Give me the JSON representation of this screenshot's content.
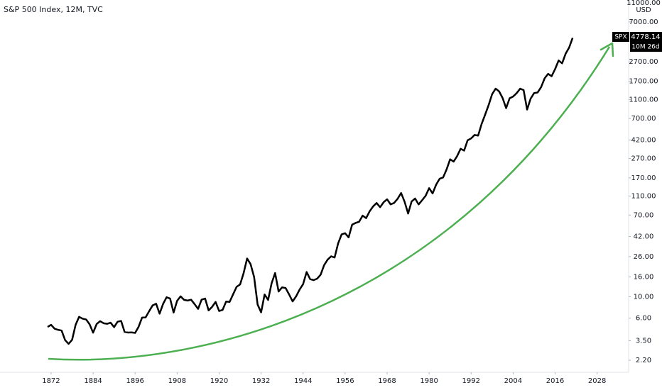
{
  "chart_data": {
    "type": "line",
    "title": "S&P 500 Index, 12M, TVC",
    "currency": "USD",
    "symbol": "SPX",
    "countdown": "10M 26d",
    "log_scale": true,
    "grid": false,
    "xlim": [
      1857.4,
      2037
    ],
    "xticks": [
      1872,
      1884,
      1896,
      1908,
      1920,
      1932,
      1944,
      1956,
      1968,
      1980,
      1992,
      2004,
      2016,
      2028
    ],
    "ylim": [
      1.65,
      11800
    ],
    "yticks": [
      {
        "value": 2.2,
        "label": "2.20"
      },
      {
        "value": 3.5,
        "label": "3.50"
      },
      {
        "value": 6,
        "label": "6.00"
      },
      {
        "value": 10,
        "label": "10.00"
      },
      {
        "value": 16,
        "label": "16.00"
      },
      {
        "value": 26,
        "label": "26.00"
      },
      {
        "value": 42,
        "label": "42.00"
      },
      {
        "value": 70,
        "label": "70.00"
      },
      {
        "value": 110,
        "label": "110.00"
      },
      {
        "value": 170,
        "label": "170.00"
      },
      {
        "value": 270,
        "label": "270.00"
      },
      {
        "value": 420,
        "label": "420.00"
      },
      {
        "value": 700,
        "label": "700.00"
      },
      {
        "value": 1100,
        "label": "1100.00"
      },
      {
        "value": 1700,
        "label": "1700.00"
      },
      {
        "value": 2700,
        "label": "2700.00"
      },
      {
        "value": 7000,
        "label": "7000.00"
      },
      {
        "value": 11000,
        "label": "11000.00"
      }
    ],
    "x": [
      1871,
      1872,
      1873,
      1874,
      1875,
      1876,
      1877,
      1878,
      1879,
      1880,
      1881,
      1882,
      1883,
      1884,
      1885,
      1886,
      1887,
      1888,
      1889,
      1890,
      1891,
      1892,
      1893,
      1894,
      1895,
      1896,
      1897,
      1898,
      1899,
      1900,
      1901,
      1902,
      1903,
      1904,
      1905,
      1906,
      1907,
      1908,
      1909,
      1910,
      1911,
      1912,
      1913,
      1914,
      1915,
      1916,
      1917,
      1918,
      1919,
      1920,
      1921,
      1922,
      1923,
      1924,
      1925,
      1926,
      1927,
      1928,
      1929,
      1930,
      1931,
      1932,
      1933,
      1934,
      1935,
      1936,
      1937,
      1938,
      1939,
      1940,
      1941,
      1942,
      1943,
      1944,
      1945,
      1946,
      1947,
      1948,
      1949,
      1950,
      1951,
      1952,
      1953,
      1954,
      1955,
      1956,
      1957,
      1958,
      1959,
      1960,
      1961,
      1962,
      1963,
      1964,
      1965,
      1966,
      1967,
      1968,
      1969,
      1970,
      1971,
      1972,
      1973,
      1974,
      1975,
      1976,
      1977,
      1978,
      1979,
      1980,
      1981,
      1982,
      1983,
      1984,
      1985,
      1986,
      1987,
      1988,
      1989,
      1990,
      1991,
      1992,
      1993,
      1994,
      1995,
      1996,
      1997,
      1998,
      1999,
      2000,
      2001,
      2002,
      2003,
      2004,
      2005,
      2006,
      2007,
      2008,
      2009,
      2010,
      2011,
      2012,
      2013,
      2014,
      2015,
      2016,
      2017,
      2018,
      2019,
      2020,
      2021
    ],
    "series": [
      {
        "name": "SPX",
        "color": "#000000",
        "values": [
          4.86,
          5.11,
          4.66,
          4.54,
          4.46,
          3.55,
          3.25,
          3.58,
          5.11,
          6.19,
          5.92,
          5.81,
          5.18,
          4.24,
          5.2,
          5.58,
          5.31,
          5.24,
          5.38,
          4.84,
          5.51,
          5.61,
          4.32,
          4.25,
          4.27,
          4.22,
          4.88,
          6.08,
          6.1,
          7.07,
          8.12,
          8.46,
          6.68,
          8.43,
          9.87,
          9.56,
          6.85,
          9.06,
          10.08,
          9.27,
          9.12,
          9.3,
          8.37,
          7.48,
          9.33,
          9.57,
          7.21,
          7.85,
          8.83,
          7.11,
          7.3,
          8.9,
          8.83,
          10.58,
          12.65,
          13.4,
          17.53,
          24.86,
          21.71,
          15.98,
          8.3,
          6.89,
          10.54,
          9.26,
          13.76,
          17.59,
          11.31,
          12.5,
          12.3,
          10.55,
          8.93,
          10.09,
          11.85,
          13.49,
          18.02,
          15.21,
          14.83,
          15.36,
          16.88,
          21.21,
          24.19,
          26.18,
          25.46,
          35.6,
          44.15,
          45.43,
          41.12,
          55.62,
          58.03,
          59.72,
          69.07,
          65.06,
          76.45,
          86.12,
          93.32,
          84.45,
          95.04,
          102,
          90.31,
          93.49,
          103.3,
          118.4,
          96.11,
          72.56,
          96.86,
          103.8,
          90.25,
          99.71,
          110.9,
          133,
          117.3,
          144.3,
          166.4,
          171.6,
          208.2,
          264.5,
          250.5,
          285.4,
          339.97,
          325.5,
          416.1,
          435.2,
          472.99,
          465.25,
          614.42,
          766.22,
          963.36,
          1248.77,
          1425.59,
          1335.63,
          1140.21,
          895.84,
          1132.52,
          1181.41,
          1278.73,
          1424.16,
          1378.76,
          865.58,
          1123.58,
          1282.62,
          1300.58,
          1480.4,
          1822.36,
          2028.18,
          1918.6,
          2275.12,
          2789.8,
          2607.39,
          3278.2,
          3793.75,
          4778.14
        ]
      }
    ]
  }
}
